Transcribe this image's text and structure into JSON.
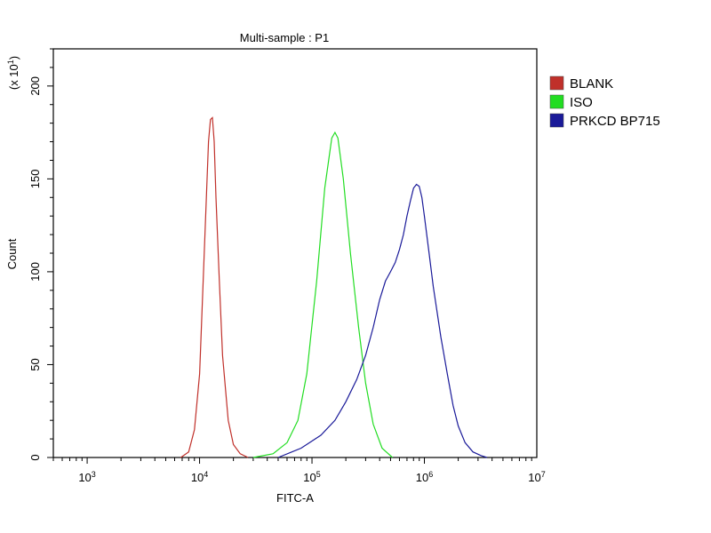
{
  "chart_data": {
    "type": "line",
    "title": "Multi-sample : P1",
    "xlabel": "FITC-A",
    "ylabel": "Count",
    "y_multiplier": "(x 10",
    "y_multiplier_exp": "1",
    "y_multiplier_close": ")",
    "x_scale": "log",
    "xlim": [
      500,
      10000000
    ],
    "ylim": [
      0,
      220
    ],
    "x_ticks": [
      {
        "value": 1000,
        "base": "10",
        "exp": "3"
      },
      {
        "value": 10000,
        "base": "10",
        "exp": "4"
      },
      {
        "value": 100000,
        "base": "10",
        "exp": "5"
      },
      {
        "value": 1000000,
        "base": "10",
        "exp": "6"
      },
      {
        "value": 10000000,
        "base": "10",
        "exp": "7"
      }
    ],
    "y_ticks": [
      0,
      50,
      100,
      150,
      200
    ],
    "legend_position": "right, outside plot",
    "grid": false,
    "series": [
      {
        "name": "BLANK",
        "color": "#c0302a",
        "x": [
          6800,
          8000,
          9000,
          10000,
          11000,
          12000,
          12500,
          13000,
          13500,
          14000,
          15000,
          16000,
          18000,
          20000,
          23000,
          27000
        ],
        "y": [
          0,
          3,
          15,
          45,
          110,
          170,
          182,
          183,
          170,
          140,
          95,
          55,
          20,
          7,
          2,
          0
        ]
      },
      {
        "name": "ISO",
        "color": "#22dd22",
        "x": [
          30000,
          45000,
          60000,
          75000,
          90000,
          110000,
          130000,
          150000,
          160000,
          170000,
          190000,
          220000,
          260000,
          300000,
          350000,
          420000,
          520000
        ],
        "y": [
          0,
          2,
          8,
          20,
          45,
          95,
          145,
          172,
          175,
          172,
          150,
          110,
          70,
          40,
          18,
          5,
          0
        ]
      },
      {
        "name": "PRKCD BP715",
        "color": "#1a1a99",
        "x": [
          50000,
          80000,
          120000,
          160000,
          200000,
          250000,
          300000,
          350000,
          400000,
          450000,
          500000,
          550000,
          600000,
          650000,
          700000,
          750000,
          800000,
          850000,
          900000,
          950000,
          1000000,
          1100000,
          1200000,
          1400000,
          1600000,
          1800000,
          2000000,
          2300000,
          2700000,
          3200000,
          3600000
        ],
        "y": [
          0,
          5,
          12,
          20,
          30,
          42,
          55,
          70,
          85,
          95,
          100,
          105,
          112,
          120,
          130,
          138,
          145,
          147,
          146,
          140,
          130,
          110,
          92,
          65,
          45,
          28,
          17,
          8,
          3,
          1,
          0
        ]
      }
    ]
  }
}
